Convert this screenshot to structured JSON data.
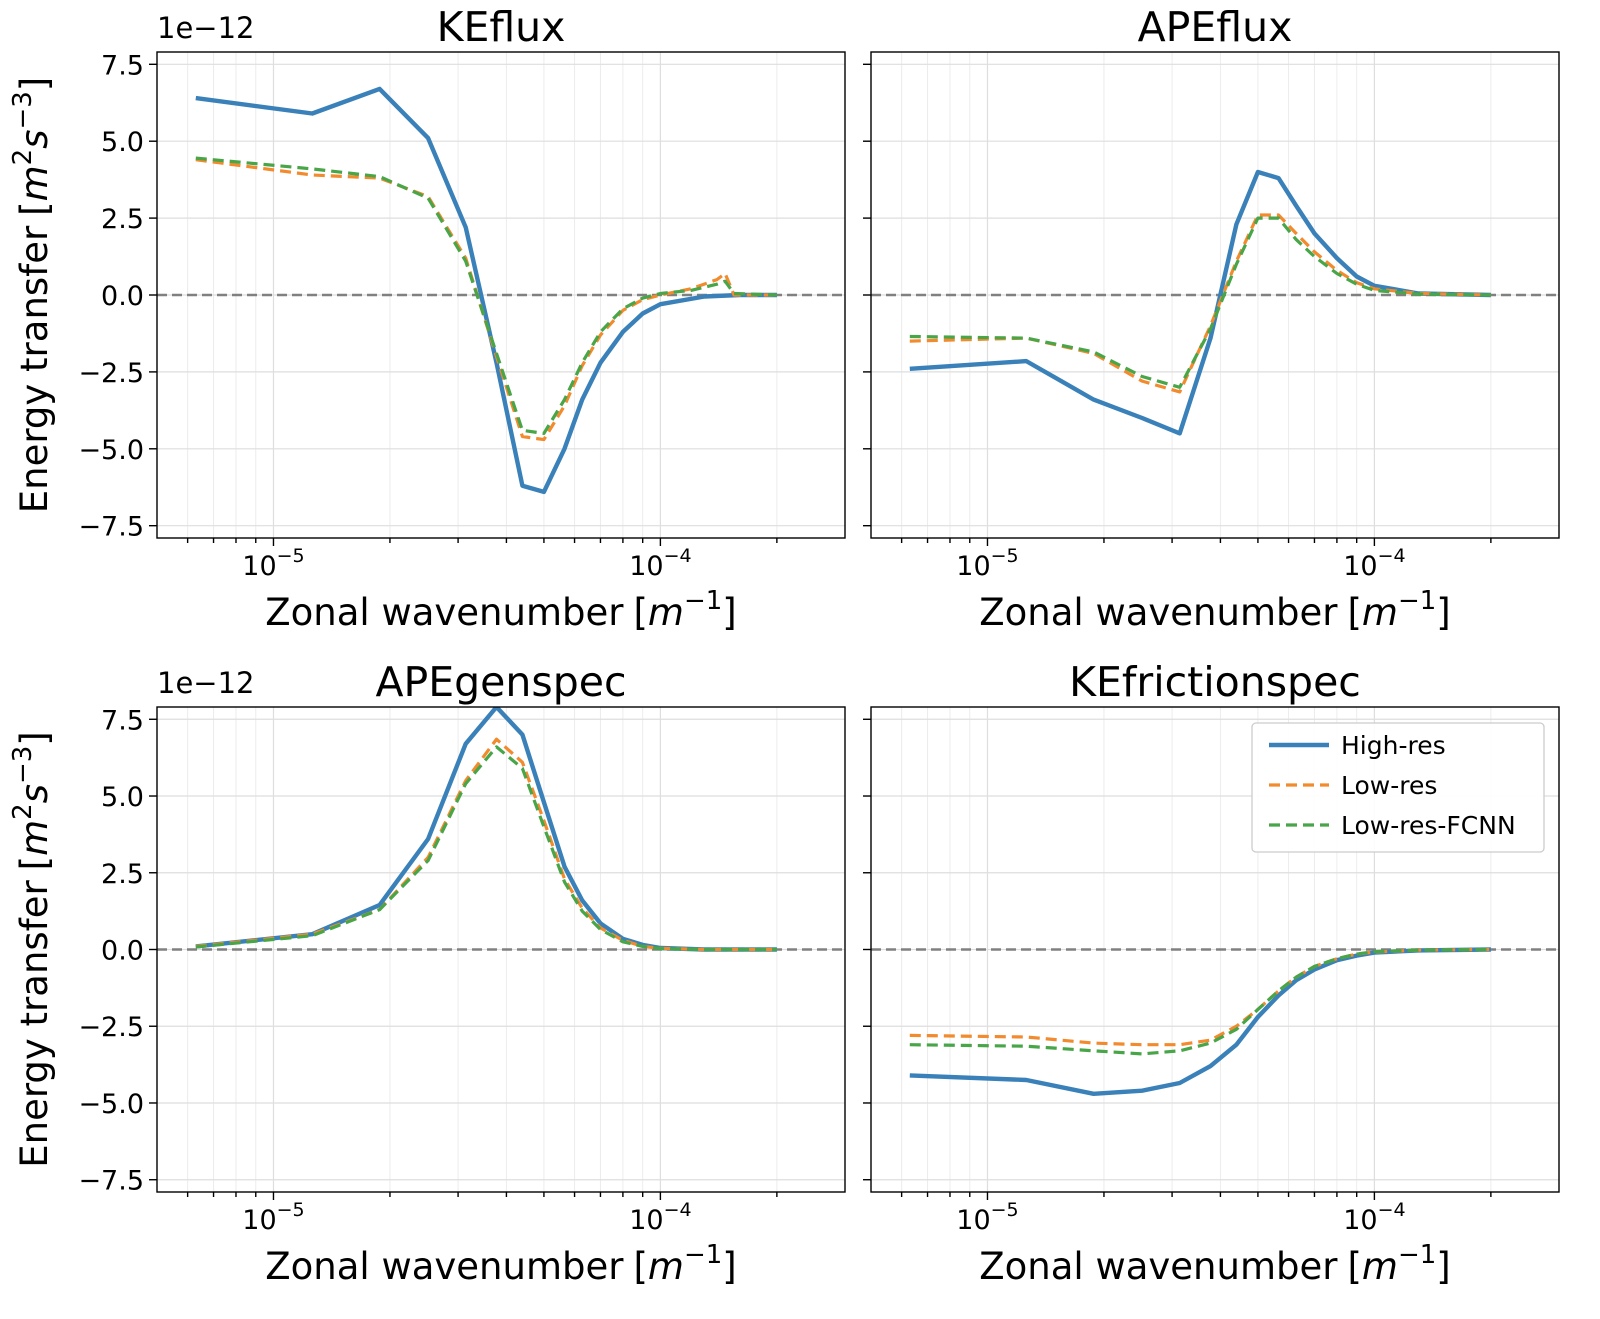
{
  "figure": {
    "ylabel": "Energy transfer",
    "ylabel_unit_prefix": "[",
    "ylabel_unit_m": "m",
    "ylabel_unit_m_exp": "2",
    "ylabel_unit_s": "s",
    "ylabel_unit_s_exp": "−3",
    "ylabel_unit_suffix": "]",
    "xlabel": "Zonal wavenumber",
    "xlabel_unit_prefix": "[",
    "xlabel_unit_m": "m",
    "xlabel_unit_exp": "−1",
    "xlabel_unit_suffix": "]",
    "offset_text": "1e−12",
    "x_tick_base": "10",
    "x_tick_exp_1": "−5",
    "x_tick_exp_2": "−4"
  },
  "legend": {
    "high_res": "High-res",
    "low_res": "Low-res",
    "low_res_fcnn": "Low-res-FCNN"
  },
  "colors": {
    "high_res": "#3a81b9",
    "low_res": "#f28a2e",
    "low_res_fcnn": "#48a548",
    "zero_line": "#808080"
  },
  "chart_data": [
    {
      "type": "line",
      "title": "KEflux",
      "xscale": "log",
      "xlim": [
        5e-06,
        0.0003
      ],
      "ylim": [
        -7.9,
        7.9
      ],
      "yticks": [
        -7.5,
        -5.0,
        -2.5,
        0.0,
        2.5,
        5.0,
        7.5
      ],
      "ytick_labels": [
        "−7.5",
        "−5.0",
        "−2.5",
        "0.0",
        "2.5",
        "5.0",
        "7.5"
      ],
      "y_multiplier": "1e-12",
      "grid": true,
      "series": [
        {
          "name": "High-res",
          "style": "solid",
          "x": [
            6.3e-06,
            1.26e-05,
            1.88e-05,
            2.51e-05,
            3.14e-05,
            3.77e-05,
            4.4e-05,
            5e-05,
            5.65e-05,
            6.28e-05,
            7e-05,
            8e-05,
            9e-05,
            0.0001,
            0.00013,
            0.00016,
            0.0002
          ],
          "values": [
            6.4,
            5.9,
            6.7,
            5.1,
            2.2,
            -2.2,
            -6.2,
            -6.4,
            -5.0,
            -3.4,
            -2.2,
            -1.2,
            -0.6,
            -0.3,
            -0.05,
            0.0,
            0.0
          ]
        },
        {
          "name": "Low-res",
          "style": "dashed",
          "x": [
            6.3e-06,
            1.26e-05,
            1.88e-05,
            2.51e-05,
            3.14e-05,
            3.77e-05,
            4.4e-05,
            5e-05,
            5.65e-05,
            6.28e-05,
            7e-05,
            8e-05,
            9e-05,
            0.0001,
            0.00012,
            0.00014,
            0.000147,
            0.000155,
            0.0002
          ],
          "values": [
            4.4,
            3.9,
            3.8,
            3.2,
            1.2,
            -2.0,
            -4.6,
            -4.7,
            -3.6,
            -2.3,
            -1.3,
            -0.5,
            -0.15,
            0.0,
            0.2,
            0.5,
            0.7,
            0.0,
            0.0
          ]
        },
        {
          "name": "Low-res-FCNN",
          "style": "dashed",
          "x": [
            6.3e-06,
            1.26e-05,
            1.88e-05,
            2.51e-05,
            3.14e-05,
            3.77e-05,
            4.4e-05,
            5e-05,
            5.65e-05,
            6.28e-05,
            7e-05,
            8e-05,
            9e-05,
            0.0001,
            0.00012,
            0.00014,
            0.000147,
            0.000155,
            0.0002
          ],
          "values": [
            4.45,
            4.1,
            3.85,
            3.15,
            1.1,
            -1.9,
            -4.4,
            -4.5,
            -3.4,
            -2.2,
            -1.2,
            -0.45,
            -0.1,
            0.05,
            0.15,
            0.35,
            0.45,
            0.05,
            0.0
          ]
        }
      ]
    },
    {
      "type": "line",
      "title": "APEflux",
      "xscale": "log",
      "xlim": [
        5e-06,
        0.0003
      ],
      "ylim": [
        -7.9,
        7.9
      ],
      "yticks": [
        -7.5,
        -5.0,
        -2.5,
        0.0,
        2.5,
        5.0,
        7.5
      ],
      "ytick_labels": [],
      "grid": true,
      "series": [
        {
          "name": "High-res",
          "style": "solid",
          "x": [
            6.3e-06,
            1.26e-05,
            1.88e-05,
            2.51e-05,
            3.14e-05,
            3.77e-05,
            4.4e-05,
            5e-05,
            5.65e-05,
            6.28e-05,
            7e-05,
            8e-05,
            9e-05,
            0.0001,
            0.00013,
            0.0002
          ],
          "values": [
            -2.4,
            -2.15,
            -3.4,
            -4.0,
            -4.5,
            -1.4,
            2.3,
            4.0,
            3.8,
            2.9,
            2.0,
            1.2,
            0.6,
            0.3,
            0.05,
            0.0
          ]
        },
        {
          "name": "Low-res",
          "style": "dashed",
          "x": [
            6.3e-06,
            1.26e-05,
            1.88e-05,
            2.51e-05,
            3.14e-05,
            3.77e-05,
            4.4e-05,
            5e-05,
            5.65e-05,
            6.28e-05,
            7e-05,
            8e-05,
            9e-05,
            0.0001,
            0.00013,
            0.0002
          ],
          "values": [
            -1.5,
            -1.4,
            -1.9,
            -2.8,
            -3.15,
            -1.0,
            1.1,
            2.6,
            2.6,
            2.0,
            1.4,
            0.8,
            0.4,
            0.2,
            0.05,
            0.0
          ]
        },
        {
          "name": "Low-res-FCNN",
          "style": "dashed",
          "x": [
            6.3e-06,
            1.26e-05,
            1.88e-05,
            2.51e-05,
            3.14e-05,
            3.77e-05,
            4.4e-05,
            5e-05,
            5.65e-05,
            6.28e-05,
            7e-05,
            8e-05,
            9e-05,
            0.0001,
            0.00013,
            0.0002
          ],
          "values": [
            -1.35,
            -1.4,
            -1.85,
            -2.65,
            -3.0,
            -1.1,
            1.0,
            2.5,
            2.5,
            1.8,
            1.25,
            0.7,
            0.35,
            0.15,
            0.03,
            0.0
          ]
        }
      ]
    },
    {
      "type": "line",
      "title": "APEgenspec",
      "xscale": "log",
      "xlim": [
        5e-06,
        0.0003
      ],
      "ylim": [
        -7.9,
        7.9
      ],
      "yticks": [
        -7.5,
        -5.0,
        -2.5,
        0.0,
        2.5,
        5.0,
        7.5
      ],
      "ytick_labels": [
        "−7.5",
        "−5.0",
        "−2.5",
        "0.0",
        "2.5",
        "5.0",
        "7.5"
      ],
      "y_multiplier": "1e-12",
      "grid": true,
      "series": [
        {
          "name": "High-res",
          "style": "solid",
          "x": [
            6.3e-06,
            1.26e-05,
            1.88e-05,
            2.51e-05,
            3.14e-05,
            3.77e-05,
            4.4e-05,
            5e-05,
            5.65e-05,
            6.28e-05,
            7e-05,
            8e-05,
            9e-05,
            0.0001,
            0.00013,
            0.0002
          ],
          "values": [
            0.1,
            0.5,
            1.45,
            3.6,
            6.7,
            7.9,
            7.0,
            4.8,
            2.7,
            1.6,
            0.85,
            0.35,
            0.15,
            0.05,
            0.0,
            0.0
          ]
        },
        {
          "name": "Low-res",
          "style": "dashed",
          "x": [
            6.3e-06,
            1.26e-05,
            1.88e-05,
            2.51e-05,
            3.14e-05,
            3.77e-05,
            4.4e-05,
            5e-05,
            5.65e-05,
            6.28e-05,
            7e-05,
            8e-05,
            9e-05,
            0.0001,
            0.00013,
            0.0002
          ],
          "values": [
            0.1,
            0.5,
            1.3,
            3.0,
            5.5,
            6.85,
            6.1,
            4.2,
            2.3,
            1.35,
            0.7,
            0.3,
            0.1,
            0.04,
            0.0,
            0.0
          ]
        },
        {
          "name": "Low-res-FCNN",
          "style": "dashed",
          "x": [
            6.3e-06,
            1.26e-05,
            1.88e-05,
            2.51e-05,
            3.14e-05,
            3.77e-05,
            4.4e-05,
            5e-05,
            5.65e-05,
            6.28e-05,
            7e-05,
            8e-05,
            9e-05,
            0.0001,
            0.00013,
            0.0002
          ],
          "values": [
            0.08,
            0.45,
            1.3,
            2.9,
            5.4,
            6.6,
            5.9,
            4.0,
            2.2,
            1.25,
            0.65,
            0.25,
            0.1,
            0.03,
            0.0,
            0.0
          ]
        }
      ]
    },
    {
      "type": "line",
      "title": "KEfrictionspec",
      "xscale": "log",
      "xlim": [
        5e-06,
        0.0003
      ],
      "ylim": [
        -7.9,
        7.9
      ],
      "yticks": [
        -7.5,
        -5.0,
        -2.5,
        0.0,
        2.5,
        5.0,
        7.5
      ],
      "ytick_labels": [],
      "grid": true,
      "legend_position": "top-right",
      "series": [
        {
          "name": "High-res",
          "style": "solid",
          "x": [
            6.3e-06,
            1.26e-05,
            1.88e-05,
            2.51e-05,
            3.14e-05,
            3.77e-05,
            4.4e-05,
            5e-05,
            5.65e-05,
            6.28e-05,
            7e-05,
            8e-05,
            9e-05,
            0.0001,
            0.00013,
            0.0002
          ],
          "values": [
            -4.1,
            -4.25,
            -4.7,
            -4.6,
            -4.35,
            -3.8,
            -3.1,
            -2.2,
            -1.5,
            -1.0,
            -0.65,
            -0.35,
            -0.2,
            -0.1,
            -0.03,
            0.0
          ]
        },
        {
          "name": "Low-res",
          "style": "dashed",
          "x": [
            6.3e-06,
            1.26e-05,
            1.88e-05,
            2.51e-05,
            3.14e-05,
            3.77e-05,
            4.4e-05,
            5e-05,
            5.65e-05,
            6.28e-05,
            7e-05,
            8e-05,
            9e-05,
            0.0001,
            0.00013,
            0.0002
          ],
          "values": [
            -2.8,
            -2.85,
            -3.05,
            -3.1,
            -3.1,
            -2.95,
            -2.5,
            -1.95,
            -1.35,
            -0.9,
            -0.55,
            -0.3,
            -0.15,
            -0.08,
            -0.02,
            0.0
          ]
        },
        {
          "name": "Low-res-FCNN",
          "style": "dashed",
          "x": [
            6.3e-06,
            1.26e-05,
            1.88e-05,
            2.51e-05,
            3.14e-05,
            3.77e-05,
            4.4e-05,
            5e-05,
            5.65e-05,
            6.28e-05,
            7e-05,
            8e-05,
            9e-05,
            0.0001,
            0.00013,
            0.0002
          ],
          "values": [
            -3.1,
            -3.15,
            -3.3,
            -3.4,
            -3.3,
            -3.05,
            -2.6,
            -1.95,
            -1.35,
            -0.9,
            -0.55,
            -0.3,
            -0.15,
            -0.07,
            -0.02,
            0.0
          ]
        }
      ]
    }
  ]
}
